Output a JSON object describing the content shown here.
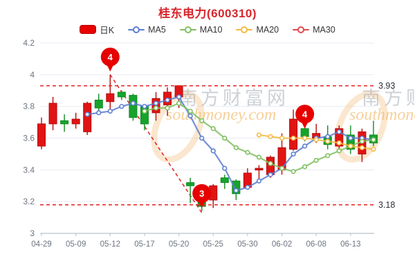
{
  "title": "桂东电力(600310)",
  "legend": {
    "items": [
      {
        "label": "日K",
        "type": "candle",
        "color": "#e60000"
      },
      {
        "label": "MA5",
        "type": "line",
        "color": "#5c7dd2"
      },
      {
        "label": "MA10",
        "type": "line",
        "color": "#7fc060"
      },
      {
        "label": "MA20",
        "type": "line",
        "color": "#f5b942"
      },
      {
        "label": "MA30",
        "type": "line",
        "color": "#e0484d"
      }
    ]
  },
  "watermark": {
    "site_name": "南方财富网",
    "site_url": "southmoney.com",
    "text_color": "#a6adb5",
    "url_color": "#f2bd71",
    "swoosh_color": "#f6c386"
  },
  "chart_data": {
    "type": "candlestick",
    "title": "桂东电力(600310)",
    "ylim": [
      3.0,
      4.2
    ],
    "grid": true,
    "legend_position": "top",
    "yticks": {
      "values": [
        4.2,
        4.0,
        3.8,
        3.6,
        3.4,
        3.2,
        3.0
      ],
      "labels": [
        "4.2",
        "4",
        "3.8",
        "3.6",
        "3.4",
        "3.2",
        "3"
      ]
    },
    "xticks": [
      {
        "index": 0,
        "label": "04-29"
      },
      {
        "index": 3,
        "label": "05-09"
      },
      {
        "index": 6,
        "label": "05-12"
      },
      {
        "index": 9,
        "label": "05-17"
      },
      {
        "index": 12,
        "label": "05-20"
      },
      {
        "index": 15,
        "label": "05-25"
      },
      {
        "index": 18,
        "label": "05-30"
      },
      {
        "index": 21,
        "label": "06-02"
      },
      {
        "index": 24,
        "label": "06-08"
      },
      {
        "index": 27,
        "label": "06-13"
      }
    ],
    "candles_ohlc": [
      [
        3.55,
        3.73,
        3.53,
        3.69
      ],
      [
        3.69,
        3.86,
        3.65,
        3.82
      ],
      [
        3.71,
        3.75,
        3.64,
        3.69
      ],
      [
        3.69,
        3.76,
        3.66,
        3.72
      ],
      [
        3.64,
        3.83,
        3.62,
        3.82
      ],
      [
        3.84,
        3.88,
        3.76,
        3.79
      ],
      [
        3.83,
        4.0,
        3.77,
        3.88
      ],
      [
        3.89,
        3.9,
        3.84,
        3.86
      ],
      [
        3.87,
        3.88,
        3.71,
        3.73
      ],
      [
        3.8,
        3.81,
        3.65,
        3.69
      ],
      [
        3.76,
        3.89,
        3.71,
        3.85
      ],
      [
        3.81,
        3.92,
        3.74,
        3.89
      ],
      [
        3.86,
        3.93,
        3.79,
        3.93
      ],
      [
        3.32,
        3.35,
        3.19,
        3.3
      ],
      [
        3.28,
        3.3,
        3.14,
        3.17
      ],
      [
        3.21,
        3.31,
        3.16,
        3.3
      ],
      [
        3.35,
        3.37,
        3.28,
        3.32
      ],
      [
        3.33,
        3.34,
        3.21,
        3.25
      ],
      [
        3.29,
        3.41,
        3.28,
        3.38
      ],
      [
        3.41,
        3.43,
        3.33,
        3.41
      ],
      [
        3.37,
        3.49,
        3.35,
        3.48
      ],
      [
        3.4,
        3.63,
        3.37,
        3.54
      ],
      [
        3.53,
        3.78,
        3.52,
        3.72
      ],
      [
        3.66,
        3.68,
        3.58,
        3.61
      ],
      [
        3.6,
        3.69,
        3.57,
        3.63
      ],
      [
        3.61,
        3.68,
        3.53,
        3.56
      ],
      [
        3.55,
        3.68,
        3.53,
        3.66
      ],
      [
        3.62,
        3.68,
        3.5,
        3.53
      ],
      [
        3.5,
        3.66,
        3.45,
        3.64
      ],
      [
        3.62,
        3.71,
        3.55,
        3.57
      ]
    ],
    "up_color": "#e01414",
    "up_stroke": "#b50d0d",
    "down_color": "#17a32b",
    "down_stroke": "#0f8a22",
    "ma_series": [
      {
        "name": "MA5",
        "color": "#5c7dd2",
        "start_index": 4,
        "values": [
          3.75,
          3.76,
          3.77,
          3.8,
          3.82,
          3.8,
          3.82,
          3.84,
          3.86,
          3.74,
          3.6,
          3.52,
          3.41,
          3.27,
          3.29,
          3.33,
          3.37,
          3.41,
          3.5,
          3.55,
          3.6,
          3.61,
          3.64,
          3.6,
          3.6,
          3.59
        ]
      },
      {
        "name": "MA10",
        "color": "#7fc060",
        "start_index": 9,
        "values": [
          3.77,
          3.79,
          3.79,
          3.82,
          3.77,
          3.71,
          3.66,
          3.6,
          3.54,
          3.51,
          3.48,
          3.44,
          3.41,
          3.39,
          3.42,
          3.46,
          3.49,
          3.52,
          3.55,
          3.58,
          3.59
        ]
      },
      {
        "name": "MA20",
        "color": "#f5b942",
        "start_index": 19,
        "values": [
          3.62,
          3.61,
          3.6,
          3.6,
          3.6,
          3.59,
          3.58,
          3.57,
          3.55,
          3.54,
          3.53
        ]
      },
      {
        "name": "MA30",
        "color": "#e0484d",
        "start_index": 0,
        "values": []
      }
    ],
    "hlines": [
      {
        "value": 3.93,
        "label": "3.93"
      },
      {
        "value": 3.18,
        "label": "3.18"
      }
    ],
    "trendline": {
      "from": {
        "index": 6,
        "price": 4.0
      },
      "to": {
        "index": 14,
        "price": 3.13
      }
    },
    "annotations": [
      {
        "index": 6,
        "label": "4",
        "anchor_price": 4.02
      },
      {
        "index": 14,
        "label": "3",
        "anchor_price": 3.16
      },
      {
        "index": 23,
        "label": "4",
        "anchor_price": 3.66
      }
    ],
    "balloon_color": "#e60000",
    "dashed_line_color": "#e62222"
  }
}
